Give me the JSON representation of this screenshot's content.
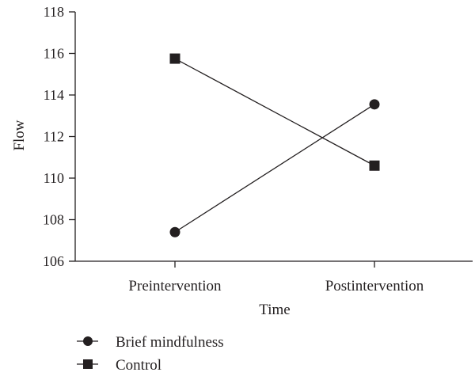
{
  "chart_data": {
    "type": "line",
    "title": "",
    "xlabel": "Time",
    "ylabel": "Flow",
    "categories": [
      "Preintervention",
      "Postintervention"
    ],
    "ylim": [
      106,
      118
    ],
    "yticks": [
      106,
      108,
      110,
      112,
      114,
      116,
      118
    ],
    "grid": false,
    "legend_position": "bottom-left",
    "series": [
      {
        "name": "Brief mindfulness",
        "marker": "circle",
        "values": [
          107.4,
          113.55
        ]
      },
      {
        "name": "Control",
        "marker": "square",
        "values": [
          115.75,
          110.6
        ]
      }
    ],
    "colors": {
      "ink": "#231f20"
    }
  }
}
